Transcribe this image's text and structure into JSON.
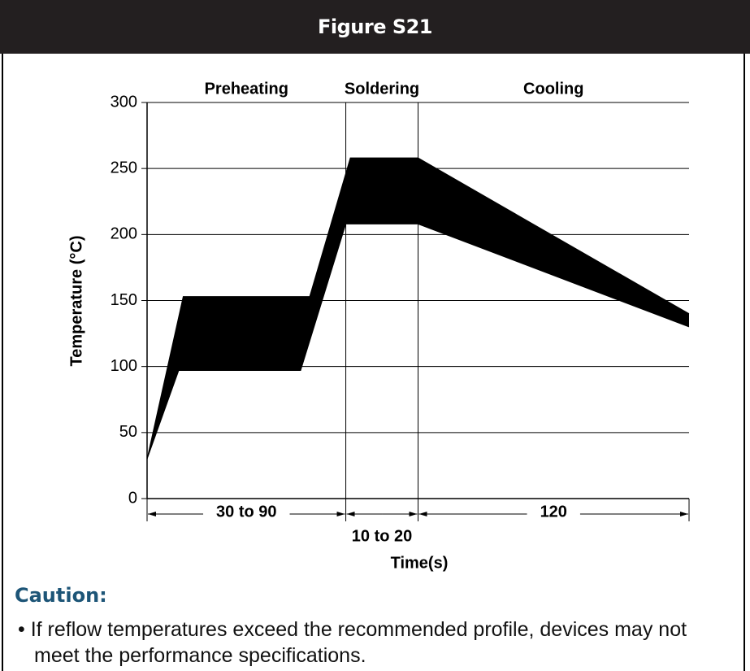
{
  "title": "Figure S21",
  "chart_data": {
    "type": "area",
    "ylabel": "Temperature (°C)",
    "xlabel": "Time(s)",
    "ylim": [
      0,
      300
    ],
    "yticks": [
      0,
      50,
      100,
      150,
      200,
      250,
      300
    ],
    "xlim": [
      0,
      240
    ],
    "grid": true,
    "color": "#000000",
    "dividers": [
      88,
      120
    ],
    "regions": [
      {
        "label": "Preheating",
        "span": "30 to 90"
      },
      {
        "label": "Soldering",
        "span": "10 to 20"
      },
      {
        "label": "Cooling",
        "span": "120"
      }
    ],
    "upper": {
      "x": [
        0,
        16,
        72,
        90,
        120,
        240
      ],
      "values": [
        30,
        153,
        153,
        258,
        258,
        140
      ]
    },
    "lower": {
      "x": [
        0,
        14,
        68,
        88,
        120,
        240
      ],
      "values": [
        30,
        97,
        97,
        208,
        208,
        130
      ]
    }
  },
  "caution": {
    "title": "Caution:",
    "items": [
      "If reflow temperatures exceed the recommended profile, devices may not meet the performance specifications."
    ]
  }
}
